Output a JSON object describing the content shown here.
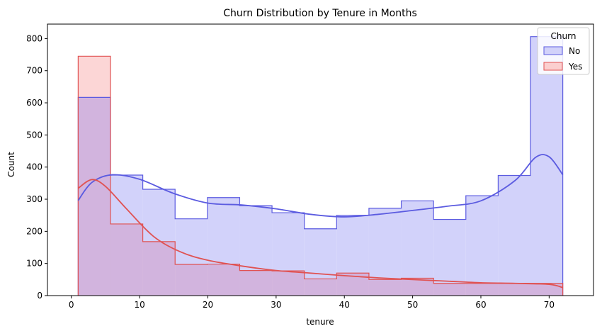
{
  "chart_data": {
    "type": "histogram",
    "title": "Churn Distribution by Tenure in Months",
    "xlabel": "tenure",
    "ylabel": "Count",
    "xlim": [
      -3.5,
      76.5
    ],
    "ylim": [
      0,
      845
    ],
    "x_ticks": [
      0,
      10,
      20,
      30,
      40,
      50,
      60,
      70
    ],
    "y_ticks": [
      0,
      100,
      200,
      300,
      400,
      500,
      600,
      700,
      800
    ],
    "bin_edges": [
      1,
      5.7333,
      10.4667,
      15.2,
      19.9333,
      24.6667,
      29.4,
      34.1333,
      38.8667,
      43.6,
      48.3333,
      53.0667,
      57.8,
      62.5333,
      67.2667,
      72
    ],
    "legend": {
      "title": "Churn",
      "position": "top-right"
    },
    "series": [
      {
        "name": "No",
        "color": "#5b5be0",
        "fill": "#d2d2fa",
        "counts": [
          617,
          375,
          331,
          239,
          305,
          280,
          258,
          208,
          250,
          272,
          295,
          237,
          311,
          374,
          806
        ],
        "kde": [
          [
            1,
            296
          ],
          [
            3,
            352
          ],
          [
            6,
            376
          ],
          [
            10,
            362
          ],
          [
            15,
            318
          ],
          [
            20,
            288
          ],
          [
            25,
            282
          ],
          [
            30,
            270
          ],
          [
            35,
            253
          ],
          [
            40,
            245
          ],
          [
            45,
            253
          ],
          [
            50,
            265
          ],
          [
            55,
            278
          ],
          [
            60,
            295
          ],
          [
            65,
            358
          ],
          [
            68,
            430
          ],
          [
            70,
            432
          ],
          [
            72,
            376
          ]
        ]
      },
      {
        "name": "Yes",
        "color": "#e05252",
        "fill": "#fbcfcf",
        "counts": [
          745,
          223,
          168,
          97,
          98,
          78,
          77,
          52,
          70,
          50,
          54,
          38,
          38,
          38,
          38
        ],
        "kde": [
          [
            1,
            334
          ],
          [
            3,
            361
          ],
          [
            5,
            340
          ],
          [
            8,
            272
          ],
          [
            12,
            185
          ],
          [
            16,
            136
          ],
          [
            20,
            110
          ],
          [
            25,
            92
          ],
          [
            30,
            78
          ],
          [
            35,
            70
          ],
          [
            40,
            62
          ],
          [
            45,
            55
          ],
          [
            50,
            50
          ],
          [
            55,
            45
          ],
          [
            60,
            40
          ],
          [
            65,
            38
          ],
          [
            70,
            35
          ],
          [
            72,
            25
          ]
        ]
      }
    ]
  }
}
